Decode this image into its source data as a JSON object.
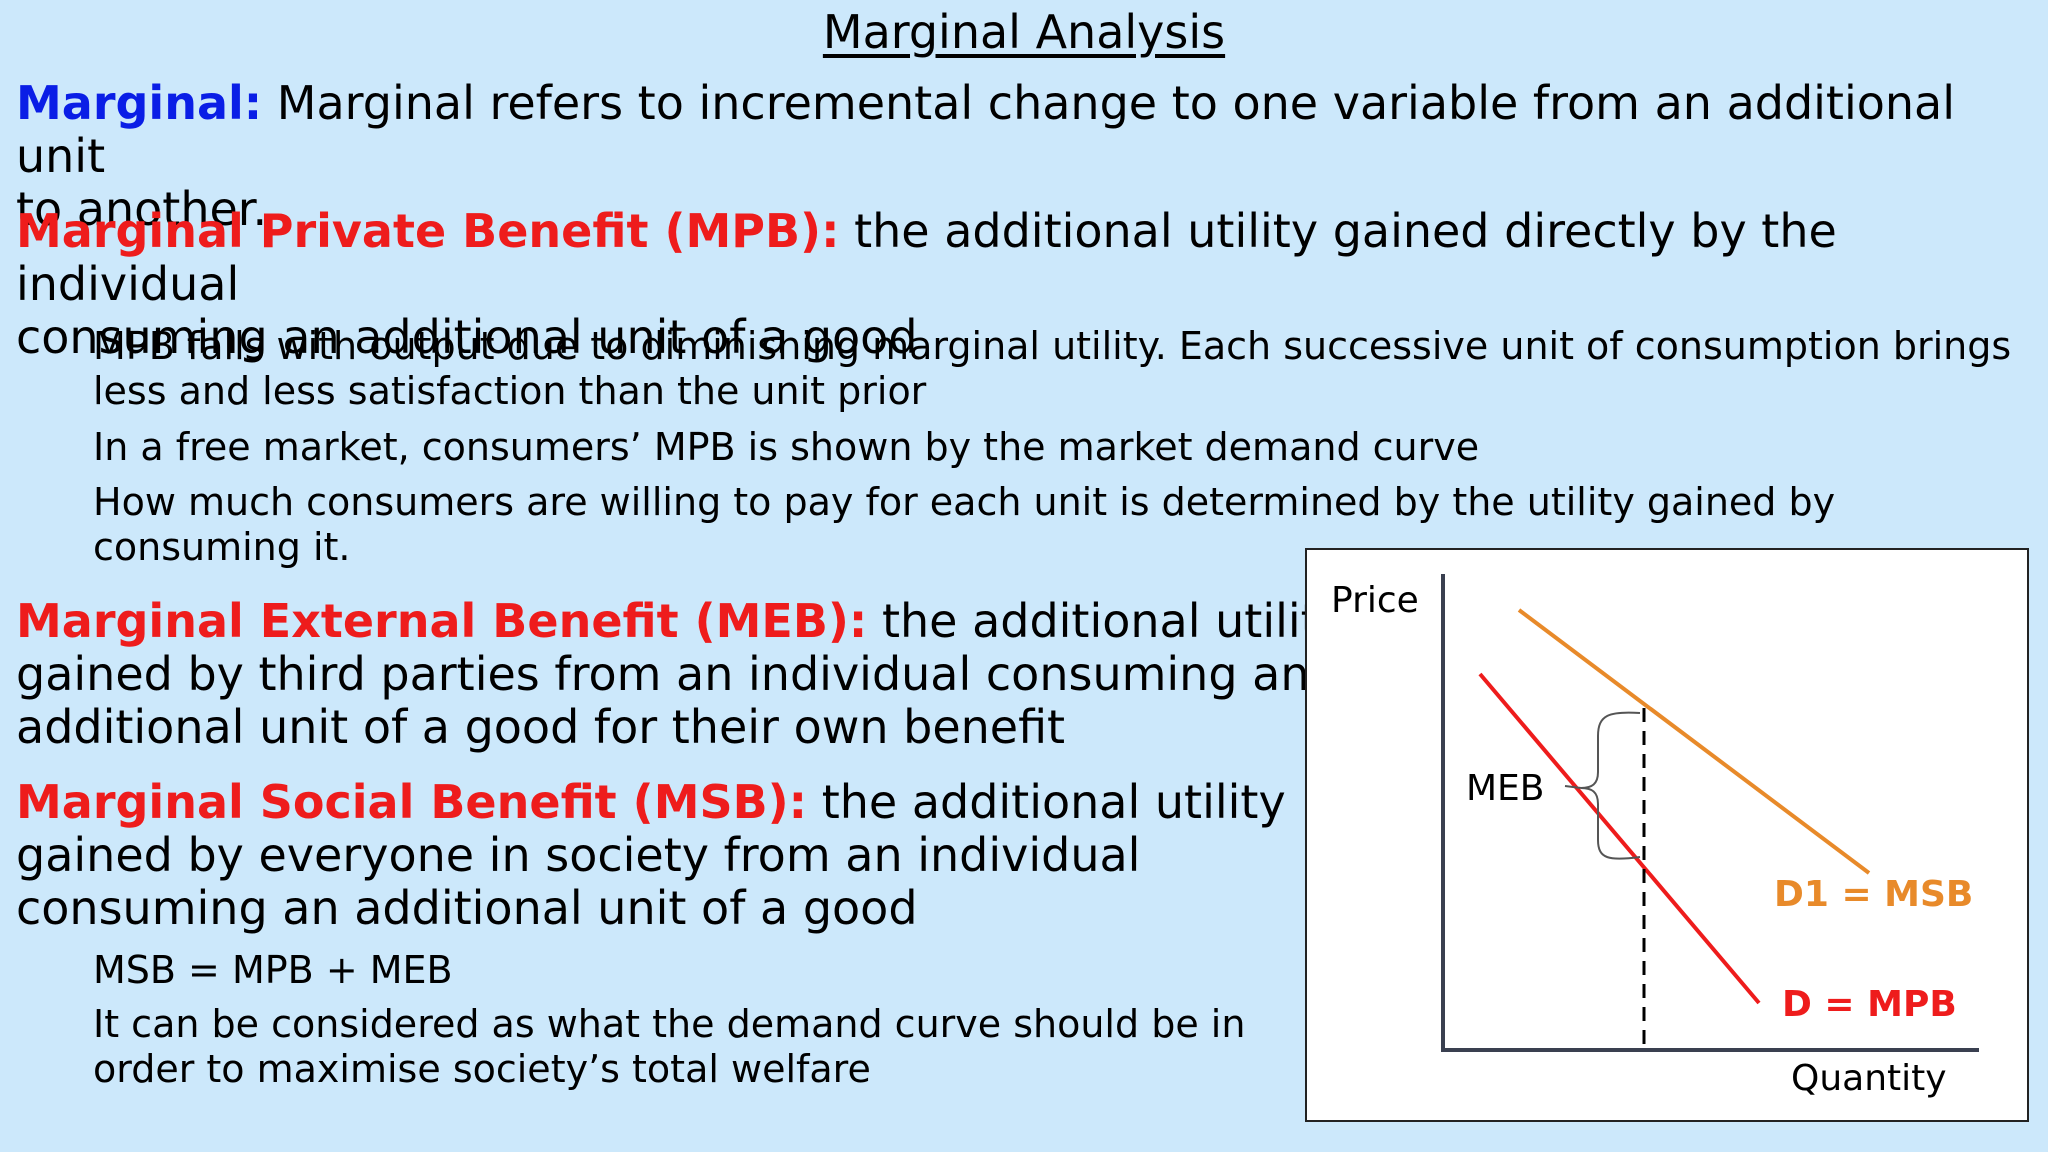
{
  "title": "Marginal Analysis",
  "sections": {
    "marginal": {
      "term": "Marginal:",
      "definition_line1": " Marginal refers to incremental change to one variable from an additional unit",
      "definition_line2": "to another."
    },
    "mpb": {
      "term": "Marginal Private Benefit (MPB):",
      "definition_line1": " the additional utility gained directly by the individual",
      "definition_line2": "consuming an additional unit of a good",
      "points": [
        {
          "line1": "MPB falls with output due to diminishing marginal utility. Each successive unit of consumption brings",
          "line2": "less and less satisfaction than the unit prior"
        },
        {
          "line1": "In a free market, consumers’ MPB is shown by the market demand curve",
          "line2": ""
        },
        {
          "line1": "How much consumers are willing to pay for each unit is determined by the utility gained by",
          "line2": "consuming it."
        }
      ]
    },
    "meb": {
      "term": "Marginal External Benefit (MEB):",
      "definition_line1": " the additional utility",
      "definition_line2": "gained by third parties from an individual consuming an",
      "definition_line3": "additional unit of a good for their own benefit"
    },
    "msb": {
      "term": "Marginal Social Benefit (MSB):",
      "definition_line1": " the additional utility",
      "definition_line2": "gained by everyone in society from an individual",
      "definition_line3": "consuming an additional unit of a good",
      "points": [
        {
          "line1": "MSB = MPB + MEB",
          "line2": ""
        },
        {
          "line1": "It can be considered as what the demand curve should be in",
          "line2": "order to maximise society’s total welfare"
        }
      ]
    }
  },
  "diagram": {
    "y_axis_label": "Price",
    "x_axis_label": "Quantity",
    "gap_label": "MEB",
    "curve_msb_label": "D1 = MSB",
    "curve_mpb_label": "D = MPB",
    "colors": {
      "msb": "#e88a2a",
      "mpb": "#ee1c1c",
      "axis": "#3a4050"
    }
  }
}
